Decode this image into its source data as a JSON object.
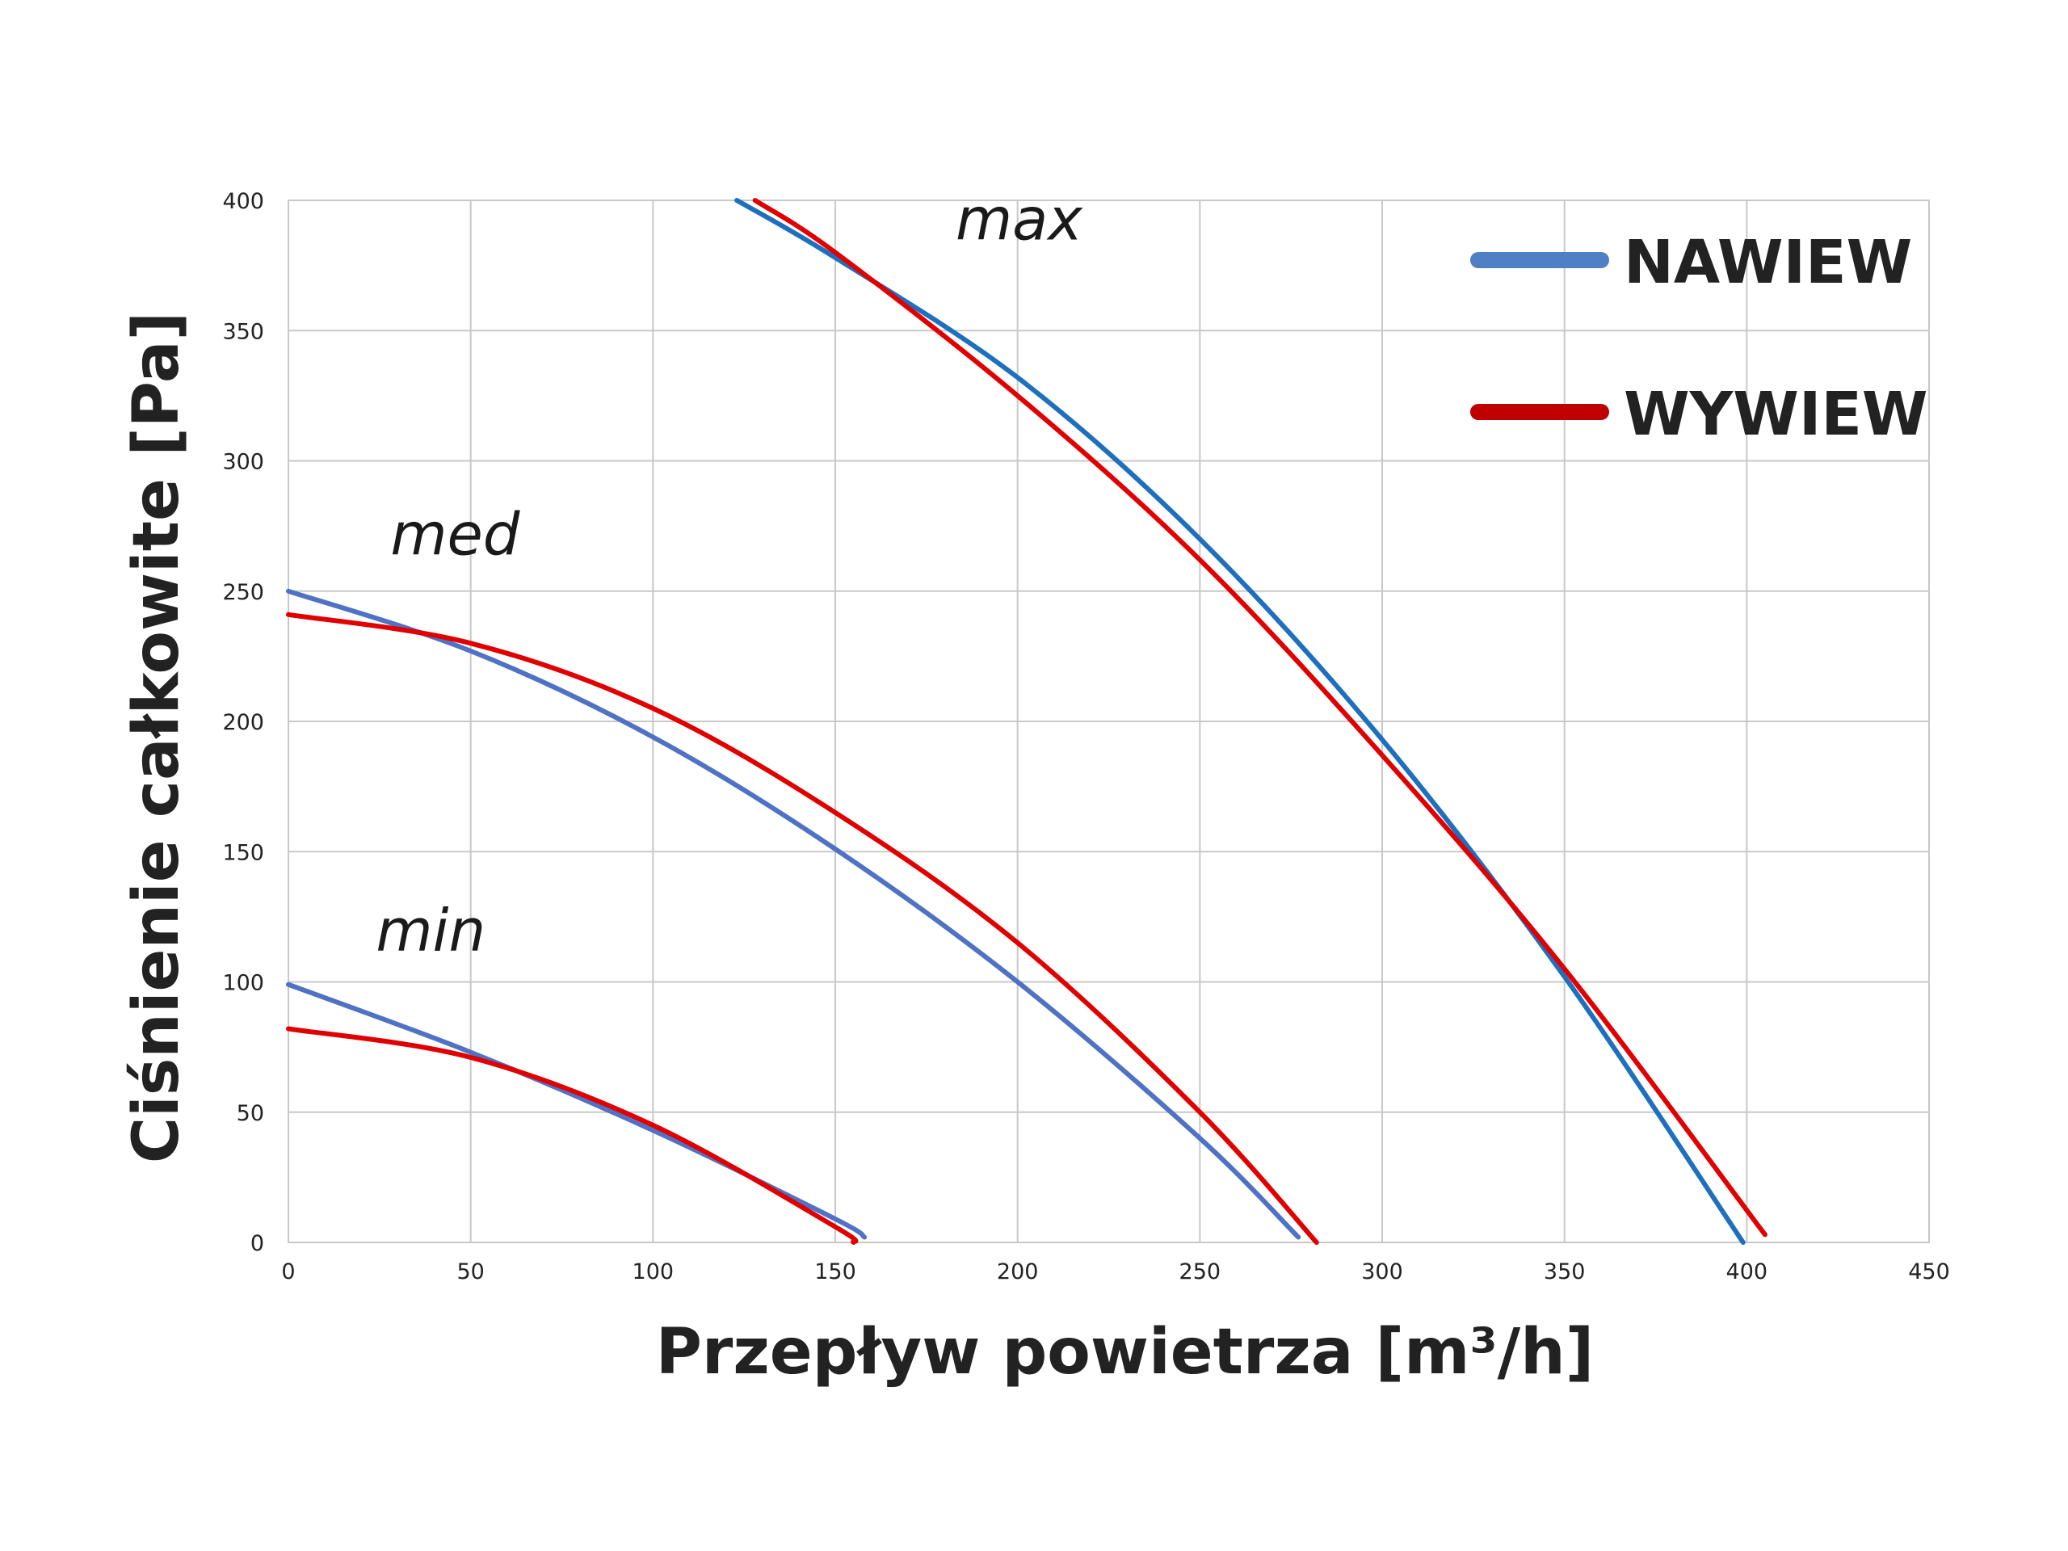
{
  "chart_data": {
    "type": "line",
    "xlabel": "Przepływ powietrza [m³/h]",
    "ylabel": "Ciśnienie całkowite [Pa]",
    "xlim": [
      0,
      450
    ],
    "ylim": [
      0,
      400
    ],
    "xticks": [
      "0",
      "50",
      "100",
      "150",
      "200",
      "250",
      "300",
      "350",
      "400",
      "450"
    ],
    "yticks": [
      "0",
      "50",
      "100",
      "150",
      "200",
      "250",
      "300",
      "350",
      "400"
    ],
    "grid": true,
    "legend_position": "top-right",
    "legend": [
      {
        "label": "NAWIEW",
        "color": "#4f7fc4"
      },
      {
        "label": "WYWIEW",
        "color": "#c00000"
      }
    ],
    "annotations": [
      {
        "text": "max",
        "x": 183,
        "y": 385
      },
      {
        "text": "med",
        "x": 28,
        "y": 264
      },
      {
        "text": "min",
        "x": 24,
        "y": 112
      }
    ],
    "series": [
      {
        "group": "max",
        "legend": "NAWIEW",
        "color": "#1f6fbf",
        "x": [
          123,
          150,
          200,
          250,
          300,
          350,
          399
        ],
        "y": [
          400,
          378,
          332,
          270,
          193,
          102,
          0
        ]
      },
      {
        "group": "max",
        "legend": "WYWIEW",
        "color": "#e00000",
        "x": [
          128,
          150,
          200,
          250,
          300,
          350,
          405
        ],
        "y": [
          400,
          380,
          325,
          262,
          187,
          105,
          3
        ]
      },
      {
        "group": "med",
        "legend": "NAWIEW",
        "color": "#4f72c4",
        "x": [
          0,
          50,
          100,
          150,
          200,
          250,
          277
        ],
        "y": [
          250,
          227,
          194,
          151,
          100,
          40,
          2
        ]
      },
      {
        "group": "med",
        "legend": "WYWIEW",
        "color": "#e00000",
        "x": [
          0,
          50,
          100,
          150,
          200,
          250,
          282
        ],
        "y": [
          241,
          230,
          205,
          165,
          115,
          50,
          0
        ]
      },
      {
        "group": "min",
        "legend": "NAWIEW",
        "color": "#4f72c4",
        "x": [
          0,
          50,
          100,
          150,
          158
        ],
        "y": [
          99,
          73,
          43,
          9,
          2
        ]
      },
      {
        "group": "min",
        "legend": "WYWIEW",
        "color": "#e00000",
        "x": [
          0,
          50,
          100,
          150,
          155
        ],
        "y": [
          82,
          71,
          45,
          6,
          0
        ]
      }
    ]
  }
}
